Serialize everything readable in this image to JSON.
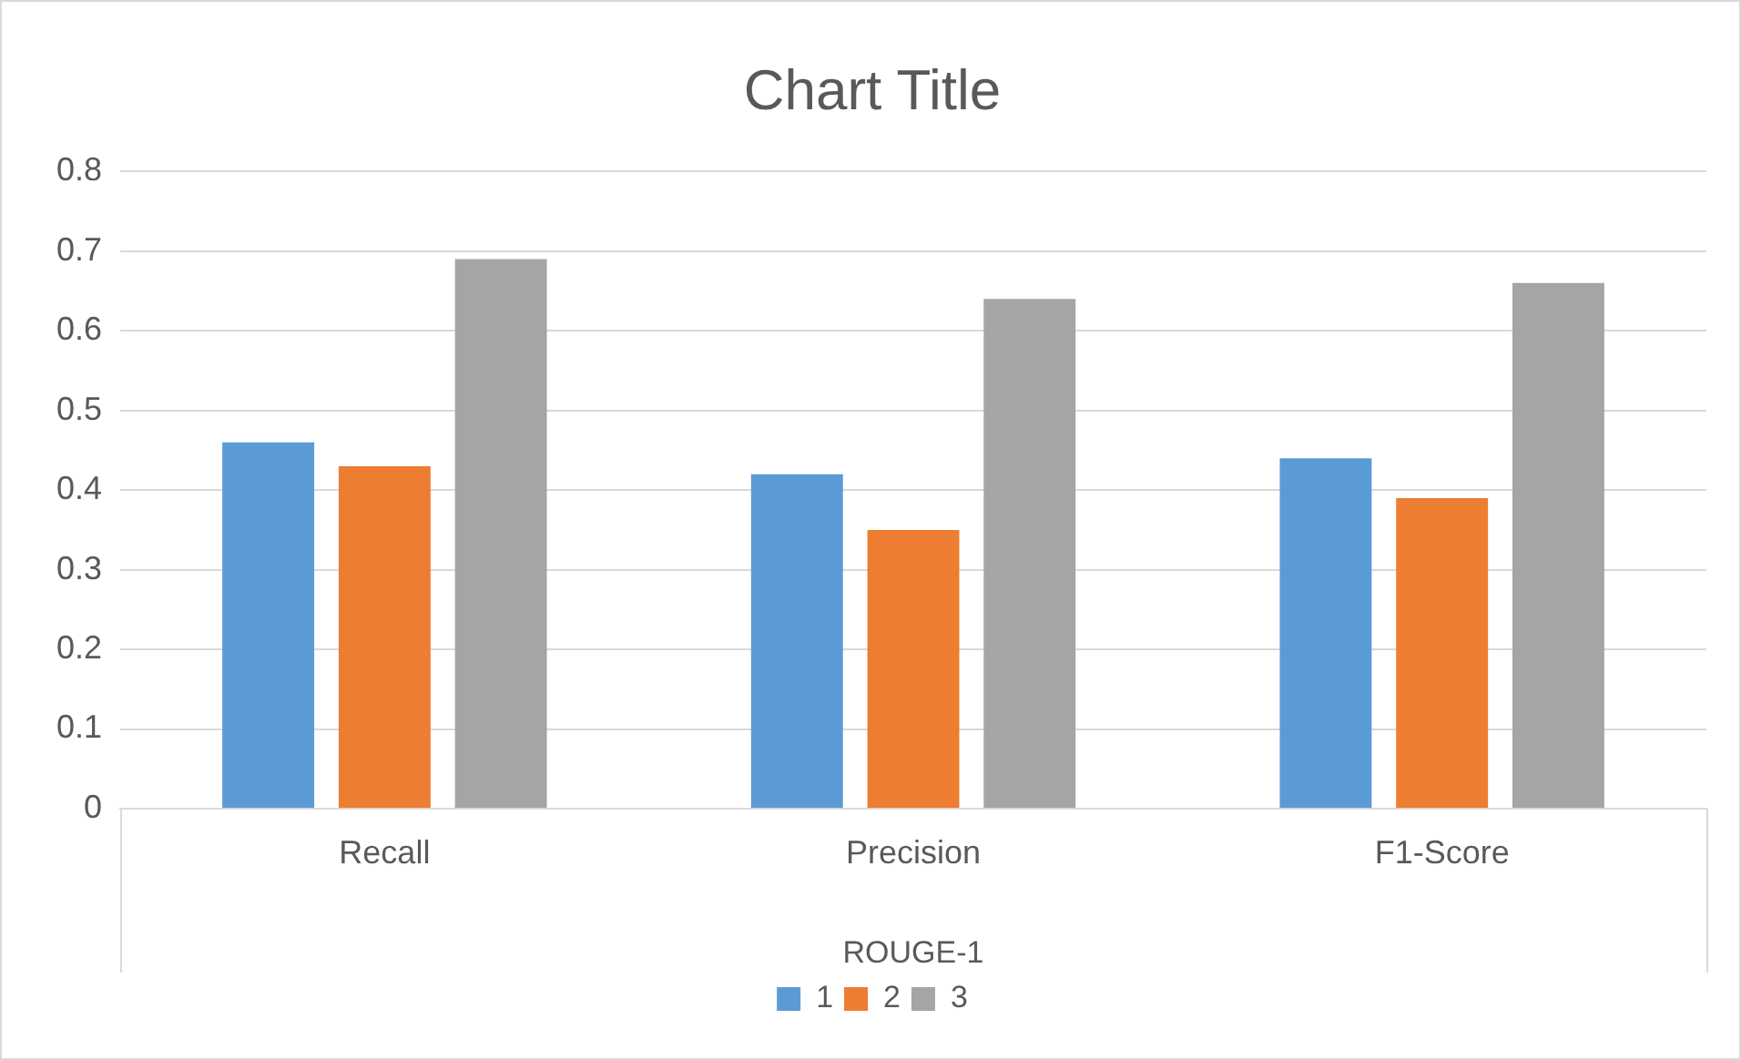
{
  "chart_data": {
    "type": "bar",
    "title": "Chart Title",
    "xlabel": "ROUGE-1",
    "categories": [
      "Recall",
      "Precision",
      "F1-Score"
    ],
    "series": [
      {
        "name": "1",
        "color": "#5b9bd5",
        "values": [
          0.46,
          0.42,
          0.44
        ]
      },
      {
        "name": "2",
        "color": "#ed7d31",
        "values": [
          0.43,
          0.35,
          0.39
        ]
      },
      {
        "name": "3",
        "color": "#a5a5a5",
        "values": [
          0.69,
          0.64,
          0.66
        ]
      }
    ],
    "ylim": [
      0,
      0.8
    ],
    "yticks": [
      0,
      0.1,
      0.2,
      0.3,
      0.4,
      0.5,
      0.6,
      0.7,
      0.8
    ],
    "grid": "y",
    "legend": "bottom"
  }
}
